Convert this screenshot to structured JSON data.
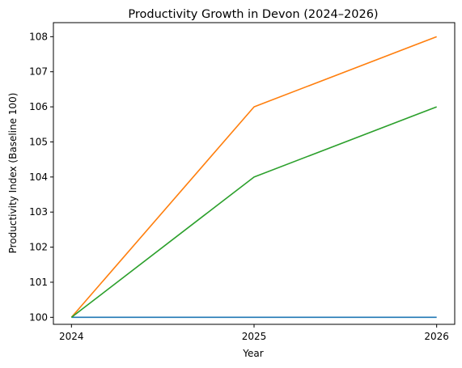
{
  "chart_data": {
    "type": "line",
    "title": "Productivity Growth in Devon (2024–2026)",
    "xlabel": "Year",
    "ylabel": "Productivity Index (Baseline 100)",
    "x": [
      "2024",
      "2025",
      "2026"
    ],
    "ylim": [
      99.8,
      108.4
    ],
    "yticks": [
      100,
      101,
      102,
      103,
      104,
      105,
      106,
      107,
      108
    ],
    "grid": false,
    "series": [
      {
        "color": "#1f77b4",
        "values": [
          100,
          100,
          100
        ]
      },
      {
        "color": "#ff7f0e",
        "values": [
          100,
          106,
          108
        ]
      },
      {
        "color": "#2ca02c",
        "values": [
          100,
          104,
          106
        ]
      }
    ]
  }
}
